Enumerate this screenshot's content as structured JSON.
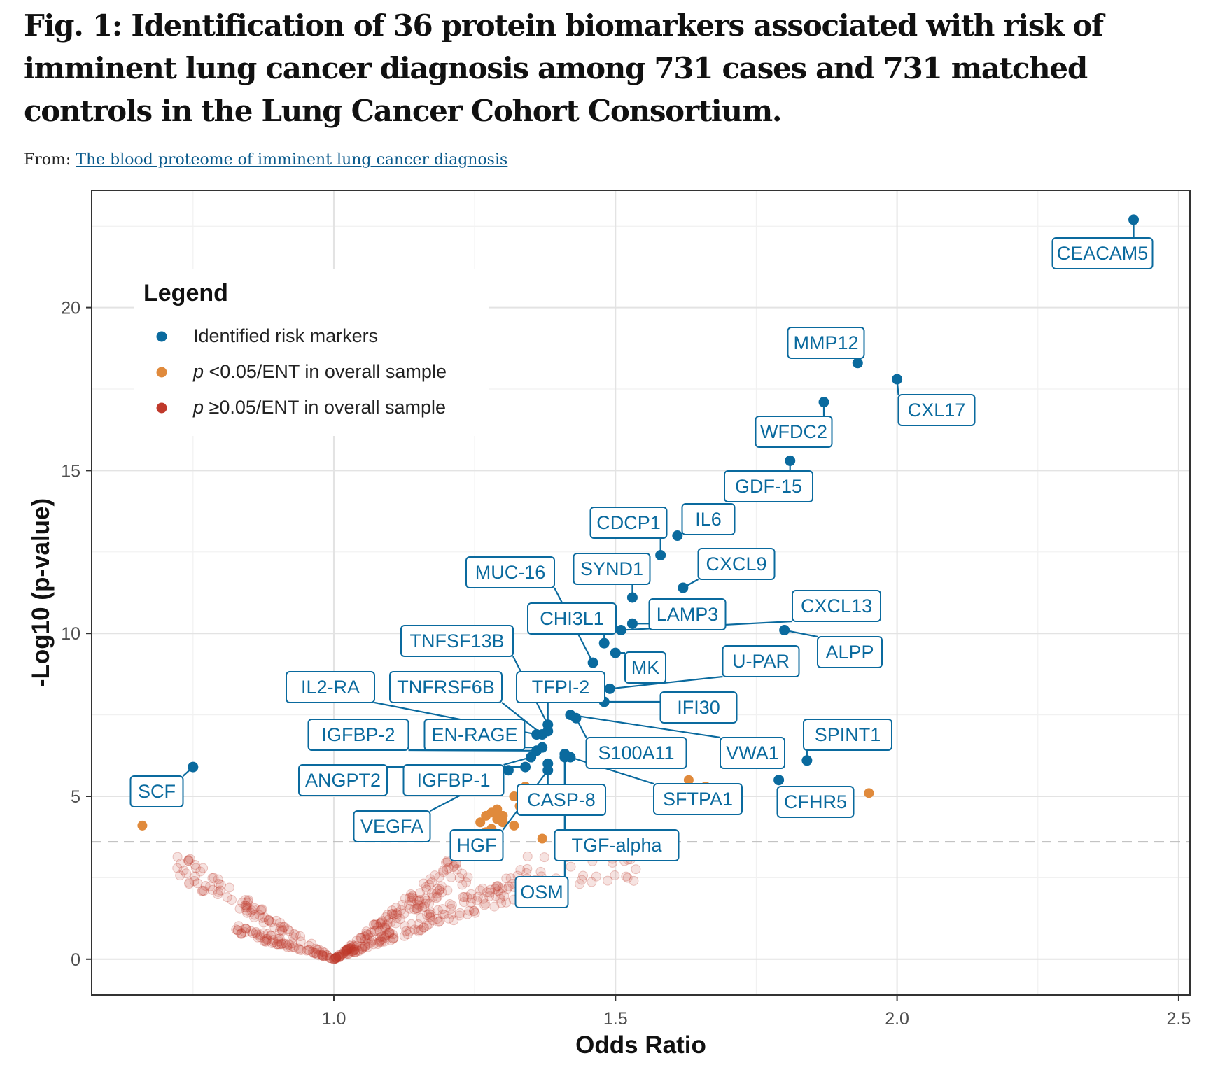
{
  "figure": {
    "title": "Fig. 1: Identification of 36 protein biomarkers associated with risk of imminent lung cancer diagnosis among 731 cases and 731 matched controls in the Lung Cancer Cohort Consortium.",
    "source_prefix": "From:",
    "source_link": "The blood proteome of imminent lung cancer diagnosis"
  },
  "colors": {
    "identified": "#0a6a9e",
    "significant_overall": "#e08a3c",
    "not_significant": "#c0392b",
    "label_text": "#0a6a9e",
    "threshold_line": "#bbbbbb"
  },
  "chart_data": {
    "type": "scatter",
    "xlabel": "Odds Ratio",
    "ylabel": "-Log10 (p-value)",
    "xlim": [
      0.57,
      2.52
    ],
    "ylim": [
      -1.1,
      23.6
    ],
    "xticks": [
      1.0,
      1.5,
      2.0,
      2.5
    ],
    "xtick_labels": [
      "1.0",
      "1.5",
      "2.0",
      "2.5"
    ],
    "yticks": [
      0,
      5,
      10,
      15,
      20
    ],
    "ytick_labels": [
      "0",
      "5",
      "10",
      "15",
      "20"
    ],
    "grid": true,
    "threshold_y": 3.6,
    "legend": {
      "title": "Legend",
      "position": "top-left",
      "entries": [
        {
          "prefix": "",
          "text": "Identified risk markers"
        },
        {
          "prefix": "p",
          "text": " <0.05/ENT in overall sample"
        },
        {
          "prefix": "p",
          "text": " ≥0.05/ENT in overall sample"
        }
      ]
    },
    "identified": [
      {
        "name": "CEACAM5",
        "x": 2.42,
        "y": 22.7
      },
      {
        "name": "MMP12",
        "x": 1.93,
        "y": 18.3
      },
      {
        "name": "CXL17",
        "x": 2.0,
        "y": 17.8
      },
      {
        "name": "WFDC2",
        "x": 1.87,
        "y": 17.1
      },
      {
        "name": "GDF-15",
        "x": 1.81,
        "y": 15.3
      },
      {
        "name": "IL6",
        "x": 1.61,
        "y": 13.0
      },
      {
        "name": "CDCP1",
        "x": 1.58,
        "y": 12.4
      },
      {
        "name": "CXCL9",
        "x": 1.62,
        "y": 11.4
      },
      {
        "name": "SYND1",
        "x": 1.53,
        "y": 11.1
      },
      {
        "name": "LAMP3",
        "x": 1.53,
        "y": 10.3
      },
      {
        "name": "CXCL13",
        "x": 1.51,
        "y": 10.1
      },
      {
        "name": "ALPP",
        "x": 1.8,
        "y": 10.1
      },
      {
        "name": "MUC-16",
        "x": 1.46,
        "y": 9.1
      },
      {
        "name": "CHI3L1",
        "x": 1.48,
        "y": 9.7
      },
      {
        "name": "MK",
        "x": 1.5,
        "y": 9.4
      },
      {
        "name": "U-PAR",
        "x": 1.49,
        "y": 8.3
      },
      {
        "name": "IFI30",
        "x": 1.48,
        "y": 7.9
      },
      {
        "name": "TNFSF13B",
        "x": 1.38,
        "y": 7.2
      },
      {
        "name": "TFPI-2",
        "x": 1.38,
        "y": 7.0
      },
      {
        "name": "TNFRSF6B",
        "x": 1.37,
        "y": 6.9
      },
      {
        "name": "IL2-RA",
        "x": 1.36,
        "y": 6.9
      },
      {
        "name": "VWA1",
        "x": 1.42,
        "y": 7.5
      },
      {
        "name": "S100A11",
        "x": 1.43,
        "y": 7.4
      },
      {
        "name": "EN-RAGE",
        "x": 1.37,
        "y": 6.5
      },
      {
        "name": "IGFBP-2",
        "x": 1.36,
        "y": 6.4
      },
      {
        "name": "SPINT1",
        "x": 1.84,
        "y": 6.1
      },
      {
        "name": "CFHR5",
        "x": 1.79,
        "y": 5.5
      },
      {
        "name": "SFTPA1",
        "x": 1.42,
        "y": 6.2
      },
      {
        "name": "IGFBP-1",
        "x": 1.35,
        "y": 6.2
      },
      {
        "name": "ANGPT2",
        "x": 1.34,
        "y": 5.9
      },
      {
        "name": "CASP-8",
        "x": 1.38,
        "y": 6.0
      },
      {
        "name": "TGF-alpha",
        "x": 1.41,
        "y": 6.3
      },
      {
        "name": "VEGFA",
        "x": 1.31,
        "y": 5.8
      },
      {
        "name": "HGF",
        "x": 1.38,
        "y": 5.8
      },
      {
        "name": "OSM",
        "x": 1.41,
        "y": 6.2
      },
      {
        "name": "SCF",
        "x": 0.75,
        "y": 5.9
      }
    ],
    "significant_overall": [
      {
        "x": 0.66,
        "y": 4.1
      },
      {
        "x": 1.95,
        "y": 5.1
      },
      {
        "x": 1.63,
        "y": 5.5
      },
      {
        "x": 1.66,
        "y": 5.3
      },
      {
        "x": 1.62,
        "y": 4.6
      },
      {
        "x": 1.37,
        "y": 3.7
      },
      {
        "x": 1.26,
        "y": 4.2
      },
      {
        "x": 1.27,
        "y": 4.4
      },
      {
        "x": 1.28,
        "y": 4.5
      },
      {
        "x": 1.29,
        "y": 4.6
      },
      {
        "x": 1.3,
        "y": 4.4
      },
      {
        "x": 1.28,
        "y": 4.0
      },
      {
        "x": 1.27,
        "y": 3.9
      },
      {
        "x": 1.32,
        "y": 4.1
      },
      {
        "x": 1.33,
        "y": 4.7
      },
      {
        "x": 1.32,
        "y": 5.0
      },
      {
        "x": 1.34,
        "y": 5.3
      },
      {
        "x": 1.3,
        "y": 4.2
      },
      {
        "x": 1.25,
        "y": 3.8
      },
      {
        "x": 1.29,
        "y": 4.3
      }
    ],
    "not_significant_note": "dense V-shaped cloud of non-significant markers centred at odds ratio 1.0"
  },
  "labels": {
    "CEACAM5": "CEACAM5",
    "MMP12": "MMP12",
    "CXL17": "CXL17",
    "WFDC2": "WFDC2",
    "GDF-15": "GDF-15",
    "IL6": "IL6",
    "CDCP1": "CDCP1",
    "CXCL9": "CXCL9",
    "SYND1": "SYND1",
    "LAMP3": "LAMP3",
    "CXCL13": "CXCL13",
    "ALPP": "ALPP",
    "MUC-16": "MUC-16",
    "CHI3L1": "CHI3L1",
    "MK": "MK",
    "U-PAR": "U-PAR",
    "IFI30": "IFI30",
    "TNFSF13B": "TNFSF13B",
    "TFPI-2": "TFPI-2",
    "TNFRSF6B": "TNFRSF6B",
    "IL2-RA": "IL2-RA",
    "VWA1": "VWA1",
    "S100A11": "S100A11",
    "EN-RAGE": "EN-RAGE",
    "IGFBP-2": "IGFBP-2",
    "SPINT1": "SPINT1",
    "CFHR5": "CFHR5",
    "SFTPA1": "SFTPA1",
    "IGFBP-1": "IGFBP-1",
    "ANGPT2": "ANGPT2",
    "CASP-8": "CASP-8",
    "TGF-alpha": "TGF-alpha",
    "VEGFA": "VEGFA",
    "HGF": "HGF",
    "OSM": "OSM",
    "SCF": "SCF"
  }
}
